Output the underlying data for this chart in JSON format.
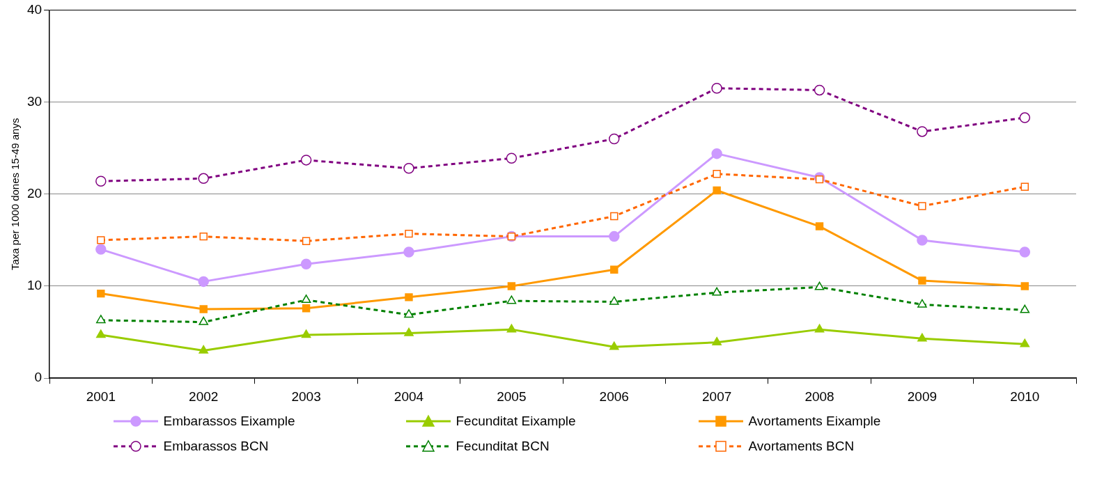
{
  "chart_data": {
    "type": "line",
    "ylabel": "Taxa per 1000 dones 15-49 anys",
    "categories": [
      "2001",
      "2002",
      "2003",
      "2004",
      "2005",
      "2006",
      "2007",
      "2008",
      "2009",
      "2010"
    ],
    "ylim": [
      0,
      40
    ],
    "yticks": [
      0,
      10,
      20,
      30,
      40
    ],
    "grid": "y",
    "legend": "bottom",
    "series": [
      {
        "name": "Embarassos Eixample",
        "color": "#cc99ff",
        "marker": "circle",
        "line_style": "solid",
        "values": [
          14.0,
          10.5,
          12.4,
          13.7,
          15.4,
          15.4,
          24.4,
          21.8,
          15.0,
          13.7
        ]
      },
      {
        "name": "Fecunditat Eixample",
        "color": "#99cc00",
        "marker": "triangle",
        "line_style": "solid",
        "values": [
          4.7,
          3.0,
          4.7,
          4.9,
          5.3,
          3.4,
          3.9,
          5.3,
          4.3,
          3.7
        ]
      },
      {
        "name": "Avortaments Eixample",
        "color": "#ff9900",
        "marker": "square",
        "line_style": "solid",
        "values": [
          9.2,
          7.5,
          7.6,
          8.8,
          10.0,
          11.8,
          20.4,
          16.5,
          10.6,
          10.0
        ]
      },
      {
        "name": "Embarassos BCN",
        "color": "#800080",
        "marker": "circle",
        "line_style": "dashed",
        "values": [
          21.4,
          21.7,
          23.7,
          22.8,
          23.9,
          26.0,
          31.5,
          31.3,
          26.8,
          28.3
        ]
      },
      {
        "name": "Fecunditat BCN",
        "color": "#008000",
        "marker": "triangle",
        "line_style": "dashed",
        "values": [
          6.3,
          6.1,
          8.5,
          6.9,
          8.4,
          8.3,
          9.3,
          9.9,
          8.0,
          7.4
        ]
      },
      {
        "name": "Avortaments BCN",
        "color": "#ff6600",
        "marker": "square",
        "line_style": "dashed",
        "values": [
          15.0,
          15.4,
          14.9,
          15.7,
          15.4,
          17.6,
          22.2,
          21.6,
          18.7,
          20.8
        ]
      }
    ]
  }
}
